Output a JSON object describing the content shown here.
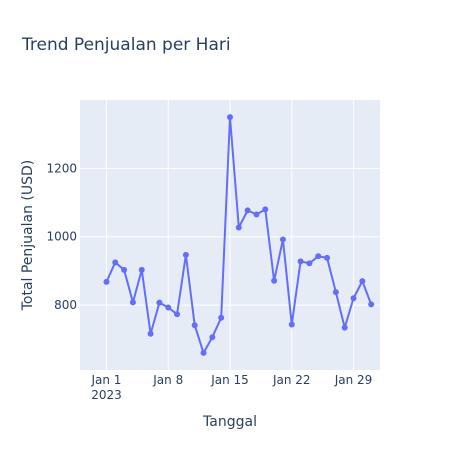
{
  "chart_data": {
    "type": "line",
    "title": "Trend Penjualan per Hari",
    "xlabel": "Tanggal",
    "ylabel": "Total Penjualan (USD)",
    "x": [
      "2023-01-01",
      "2023-01-02",
      "2023-01-03",
      "2023-01-04",
      "2023-01-05",
      "2023-01-06",
      "2023-01-07",
      "2023-01-08",
      "2023-01-09",
      "2023-01-10",
      "2023-01-11",
      "2023-01-12",
      "2023-01-13",
      "2023-01-14",
      "2023-01-15",
      "2023-01-16",
      "2023-01-17",
      "2023-01-18",
      "2023-01-19",
      "2023-01-20",
      "2023-01-21",
      "2023-01-22",
      "2023-01-23",
      "2023-01-24",
      "2023-01-25",
      "2023-01-26",
      "2023-01-27",
      "2023-01-28",
      "2023-01-29",
      "2023-01-30",
      "2023-01-31"
    ],
    "series": [
      {
        "values": [
          868,
          925,
          903,
          808,
          903,
          716,
          807,
          793,
          773,
          947,
          741,
          660,
          706,
          763,
          1350,
          1027,
          1077,
          1065,
          1080,
          871,
          992,
          743,
          928,
          922,
          943,
          938,
          838,
          734,
          820,
          870,
          802
        ],
        "color": "#636efa"
      }
    ],
    "xticks": [
      {
        "date": "2023-01-01",
        "label": "Jan 1",
        "sublabel": "2023"
      },
      {
        "date": "2023-01-08",
        "label": "Jan 8",
        "sublabel": ""
      },
      {
        "date": "2023-01-15",
        "label": "Jan 15",
        "sublabel": ""
      },
      {
        "date": "2023-01-22",
        "label": "Jan 22",
        "sublabel": ""
      },
      {
        "date": "2023-01-29",
        "label": "Jan 29",
        "sublabel": ""
      }
    ],
    "yticks": [
      800,
      1000,
      1200
    ],
    "ylim": [
      610,
      1400
    ],
    "xlim": [
      "2022-12-29",
      "2023-02-01"
    ],
    "grid": true,
    "plot_bgcolor": "#e5ecf6",
    "grid_color": "#ffffff"
  }
}
